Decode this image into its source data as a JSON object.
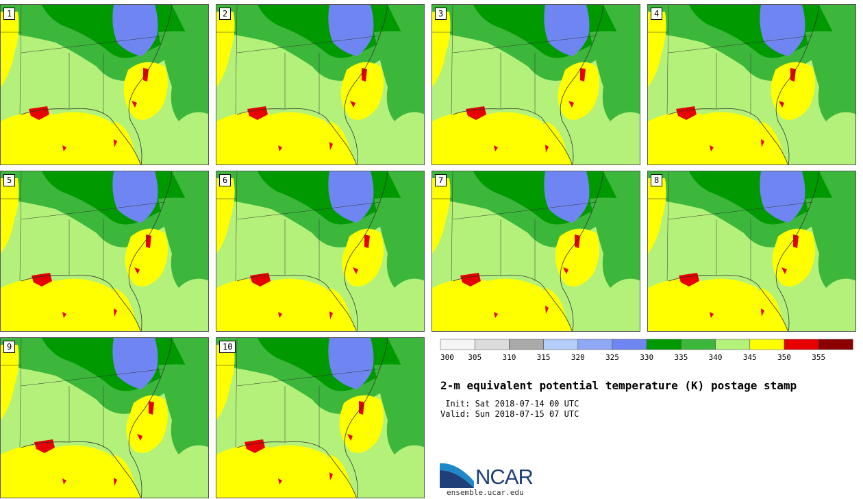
{
  "panels": [
    {
      "label": "1"
    },
    {
      "label": "2"
    },
    {
      "label": "3"
    },
    {
      "label": "4"
    },
    {
      "label": "5"
    },
    {
      "label": "6"
    },
    {
      "label": "7"
    },
    {
      "label": "8"
    },
    {
      "label": "9"
    },
    {
      "label": "10"
    }
  ],
  "colors": {
    "ocean_warm": "#ffff00",
    "land_mid": "#b3f17a",
    "land_green": "#3cb73c",
    "land_dark": "#009a00",
    "cool_blue": "#6f86f2",
    "hot_red": "#e60000",
    "border": "#333333"
  },
  "colorbar": {
    "ticks": [
      "300",
      "305",
      "310",
      "315",
      "320",
      "325",
      "330",
      "335",
      "340",
      "345",
      "350",
      "355"
    ],
    "colors": [
      "#f5f5f5",
      "#dcdcdc",
      "#a9a9a9",
      "#b4cdfa",
      "#8fa8f5",
      "#6f86f2",
      "#009a00",
      "#3cb73c",
      "#b3f17a",
      "#ffff00",
      "#e60000",
      "#8b0000"
    ]
  },
  "title": "2-m equivalent potential temperature (K) postage stamp",
  "init": " Init: Sat 2018-07-14 00 UTC",
  "valid": "Valid: Sun 2018-07-15 07 UTC",
  "logo": {
    "text": "NCAR",
    "url": "ensemble.ucar.edu"
  }
}
